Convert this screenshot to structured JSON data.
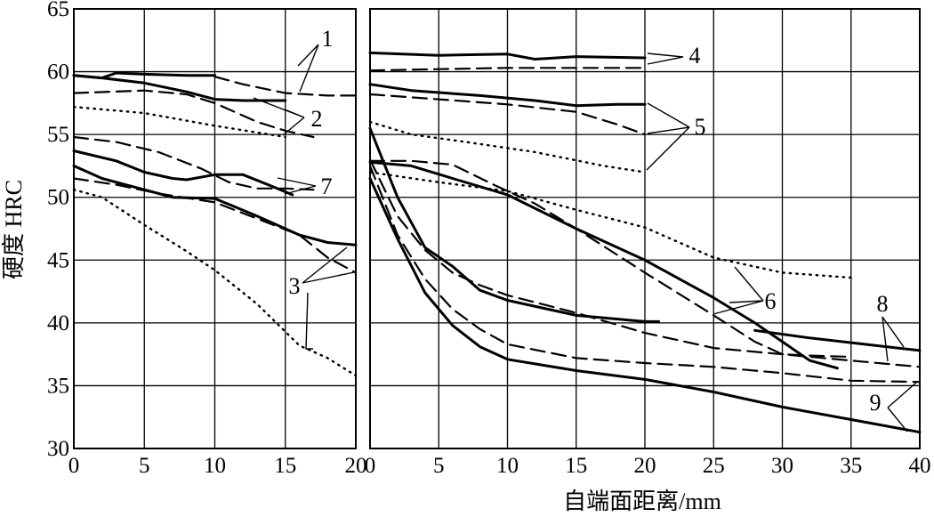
{
  "chart_data": {
    "type": "line",
    "ylabel": "硬度 HRC",
    "xlabel": "自端面距离/mm",
    "grid": true,
    "panels": [
      {
        "id": "left",
        "xlim": [
          0,
          20
        ],
        "ylim": [
          30,
          65
        ],
        "xticks": [
          0,
          5,
          10,
          15,
          20
        ],
        "yticks": [
          30,
          35,
          40,
          45,
          50,
          55,
          60,
          65
        ],
        "series": [
          {
            "style": "solid",
            "points": [
              [
                0,
                59.7
              ],
              [
                2,
                59.5
              ],
              [
                3,
                59.9
              ],
              [
                5,
                59.8
              ],
              [
                8,
                59.7
              ],
              [
                10,
                59.7
              ]
            ]
          },
          {
            "style": "dash",
            "points": [
              [
                10,
                59.6
              ],
              [
                12,
                59
              ],
              [
                15,
                58.3
              ],
              [
                18,
                58.1
              ],
              [
                20,
                58.1
              ]
            ]
          },
          {
            "style": "solid",
            "points": [
              [
                0,
                59.7
              ],
              [
                2,
                59.5
              ],
              [
                5,
                59.1
              ],
              [
                8,
                58.4
              ],
              [
                10,
                57.8
              ],
              [
                12,
                57.7
              ],
              [
                15,
                57.7
              ]
            ]
          },
          {
            "style": "dash",
            "points": [
              [
                0,
                58.3
              ],
              [
                5,
                58.5
              ],
              [
                8,
                58.2
              ],
              [
                10,
                57.5
              ],
              [
                13,
                56
              ],
              [
                15,
                55.3
              ],
              [
                17,
                54.8
              ]
            ]
          },
          {
            "style": "dot",
            "points": [
              [
                0,
                57.2
              ],
              [
                5,
                56.7
              ],
              [
                10,
                55.7
              ],
              [
                15,
                54.8
              ]
            ]
          },
          {
            "style": "dash",
            "points": [
              [
                0,
                54.8
              ],
              [
                3,
                54.4
              ],
              [
                6,
                53.6
              ],
              [
                9,
                52.3
              ],
              [
                11,
                51.2
              ],
              [
                13,
                50.7
              ],
              [
                15,
                50.7
              ],
              [
                17,
                50.6
              ]
            ]
          },
          {
            "style": "solid",
            "points": [
              [
                0,
                53.7
              ],
              [
                3,
                52.9
              ],
              [
                5,
                52
              ],
              [
                7,
                51.5
              ],
              [
                8,
                51.4
              ],
              [
                10,
                51.8
              ],
              [
                12,
                51.8
              ],
              [
                14,
                50.9
              ],
              [
                15.5,
                50.2
              ]
            ]
          },
          {
            "style": "dash",
            "points": [
              [
                0,
                51.5
              ],
              [
                3,
                51
              ],
              [
                6,
                50.3
              ],
              [
                10,
                49.6
              ],
              [
                13,
                48.3
              ],
              [
                16,
                47
              ],
              [
                18,
                45.2
              ],
              [
                20,
                44
              ]
            ]
          },
          {
            "style": "solid",
            "points": [
              [
                0,
                52.5
              ],
              [
                2,
                51.5
              ],
              [
                5,
                50.6
              ],
              [
                7,
                50
              ],
              [
                10,
                49.9
              ],
              [
                13,
                48.5
              ],
              [
                16,
                47
              ],
              [
                18,
                46.4
              ],
              [
                20,
                46.2
              ]
            ]
          },
          {
            "style": "dot",
            "points": [
              [
                0,
                50.6
              ],
              [
                2,
                50
              ],
              [
                5,
                47.8
              ],
              [
                8,
                45.7
              ],
              [
                10,
                44.2
              ],
              [
                13,
                41.5
              ],
              [
                16,
                38.2
              ],
              [
                18,
                37.2
              ],
              [
                20,
                35.8
              ]
            ]
          }
        ]
      },
      {
        "id": "right",
        "xlim": [
          0,
          40
        ],
        "ylim": [
          30,
          65
        ],
        "xticks": [
          0,
          5,
          10,
          15,
          20,
          25,
          30,
          35,
          40
        ],
        "yticks": [
          30,
          35,
          40,
          45,
          50,
          55,
          60,
          65
        ],
        "series": [
          {
            "style": "solid",
            "points": [
              [
                0,
                61.5
              ],
              [
                5,
                61.3
              ],
              [
                10,
                61.4
              ],
              [
                12,
                61
              ],
              [
                15,
                61.2
              ],
              [
                20,
                61.1
              ]
            ]
          },
          {
            "style": "dash",
            "points": [
              [
                0,
                60.1
              ],
              [
                5,
                60.2
              ],
              [
                10,
                60.3
              ],
              [
                15,
                60.3
              ],
              [
                20,
                60.3
              ]
            ]
          },
          {
            "style": "solid",
            "points": [
              [
                0,
                59
              ],
              [
                3,
                58.5
              ],
              [
                8,
                58.1
              ],
              [
                12,
                57.7
              ],
              [
                15,
                57.3
              ],
              [
                18,
                57.4
              ],
              [
                20,
                57.4
              ]
            ]
          },
          {
            "style": "dash",
            "points": [
              [
                0,
                58.2
              ],
              [
                5,
                57.8
              ],
              [
                10,
                57.4
              ],
              [
                15,
                56.8
              ],
              [
                18,
                55.8
              ],
              [
                20,
                55
              ]
            ]
          },
          {
            "style": "dot",
            "points": [
              [
                0,
                56
              ],
              [
                3,
                55
              ],
              [
                7,
                54.4
              ],
              [
                12,
                53.6
              ],
              [
                17,
                52.5
              ],
              [
                20,
                52
              ]
            ]
          },
          {
            "style": "dot",
            "points": [
              [
                0,
                52
              ],
              [
                5,
                51.2
              ],
              [
                10,
                50.5
              ],
              [
                15,
                49
              ],
              [
                20,
                47.6
              ],
              [
                25,
                45.2
              ],
              [
                30,
                44
              ],
              [
                35,
                43.6
              ]
            ]
          },
          {
            "style": "dash",
            "points": [
              [
                0,
                52.9
              ],
              [
                3,
                52.9
              ],
              [
                6,
                52.6
              ],
              [
                9,
                51
              ],
              [
                12,
                49.5
              ],
              [
                15,
                47.5
              ],
              [
                20,
                44
              ],
              [
                25,
                40.6
              ],
              [
                28,
                38.5
              ],
              [
                30,
                37.5
              ],
              [
                32,
                37.4
              ],
              [
                35,
                37.3
              ]
            ]
          },
          {
            "style": "solid",
            "points": [
              [
                0,
                52.8
              ],
              [
                3,
                52.5
              ],
              [
                6,
                51.5
              ],
              [
                10,
                50.2
              ],
              [
                15,
                47.5
              ],
              [
                20,
                45
              ],
              [
                25,
                42
              ],
              [
                28,
                40
              ],
              [
                30,
                38.5
              ],
              [
                32,
                37
              ],
              [
                34,
                36.4
              ]
            ]
          },
          {
            "style": "solid",
            "points": [
              [
                0,
                55.5
              ],
              [
                2,
                50
              ],
              [
                4,
                46
              ],
              [
                6,
                44.5
              ],
              [
                8,
                42.6
              ],
              [
                10,
                41.8
              ],
              [
                15,
                40.6
              ],
              [
                20,
                40.1
              ],
              [
                21,
                40.1
              ]
            ]
          },
          {
            "style": "dash",
            "points": [
              [
                0,
                53
              ],
              [
                2,
                48.5
              ],
              [
                4,
                45.8
              ],
              [
                6,
                44
              ],
              [
                8,
                43
              ],
              [
                10,
                42.2
              ],
              [
                15,
                40.8
              ],
              [
                20,
                39.2
              ],
              [
                25,
                38
              ],
              [
                30,
                37.5
              ],
              [
                35,
                37
              ],
              [
                40,
                36.5
              ]
            ]
          },
          {
            "style": "solid",
            "points": [
              [
                28,
                39.4
              ],
              [
                32,
                38.8
              ],
              [
                36,
                38.3
              ],
              [
                40,
                37.8
              ]
            ]
          },
          {
            "style": "dash",
            "points": [
              [
                0,
                52.5
              ],
              [
                2,
                47
              ],
              [
                4,
                43.5
              ],
              [
                6,
                41.1
              ],
              [
                8,
                39.5
              ],
              [
                10,
                38.3
              ],
              [
                15,
                37.2
              ],
              [
                20,
                36.8
              ],
              [
                25,
                36.5
              ],
              [
                30,
                36
              ],
              [
                35,
                35.4
              ],
              [
                40,
                35.3
              ]
            ]
          },
          {
            "style": "solid",
            "points": [
              [
                0,
                51.5
              ],
              [
                2,
                46.7
              ],
              [
                4,
                42.4
              ],
              [
                6,
                39.8
              ],
              [
                8,
                38.1
              ],
              [
                10,
                37.1
              ],
              [
                15,
                36.2
              ],
              [
                20,
                35.5
              ],
              [
                25,
                34.5
              ],
              [
                30,
                33.3
              ],
              [
                35,
                32.3
              ],
              [
                40,
                31.3
              ]
            ]
          }
        ]
      }
    ],
    "curve_labels": [
      "1",
      "2",
      "3",
      "4",
      "5",
      "6",
      "7",
      "8",
      "9"
    ]
  }
}
